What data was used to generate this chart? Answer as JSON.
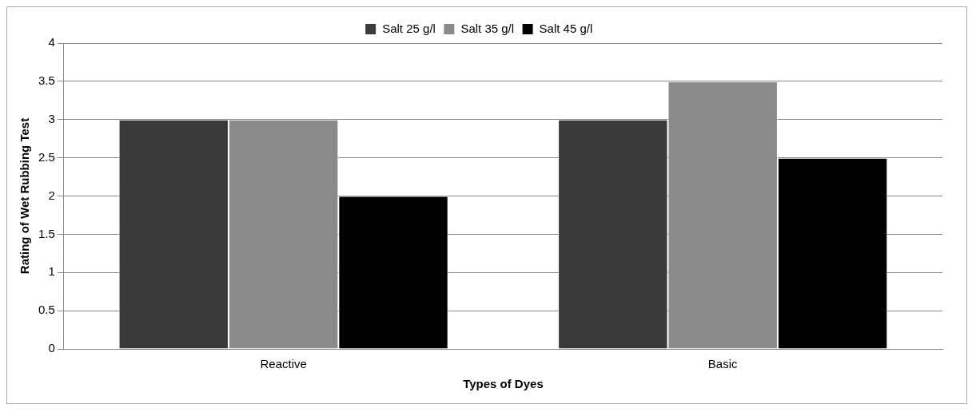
{
  "chart_data": {
    "type": "bar",
    "xlabel": "Types of Dyes",
    "ylabel": "Rating of Wet Rubbing Test",
    "categories": [
      "Reactive",
      "Basic"
    ],
    "series": [
      {
        "name": "Salt 25 g/l",
        "color": "#3a3a3a",
        "values": [
          3,
          3
        ]
      },
      {
        "name": "Salt 35 g/l",
        "color": "#8a8a8a",
        "values": [
          3,
          3.5
        ]
      },
      {
        "name": "Salt 45 g/l",
        "color": "#000000",
        "values": [
          2,
          2.5
        ]
      }
    ],
    "ylim": [
      0,
      4
    ],
    "yticks": [
      0,
      0.5,
      1,
      1.5,
      2,
      2.5,
      3,
      3.5,
      4
    ],
    "grid": "y",
    "legend": "top"
  }
}
